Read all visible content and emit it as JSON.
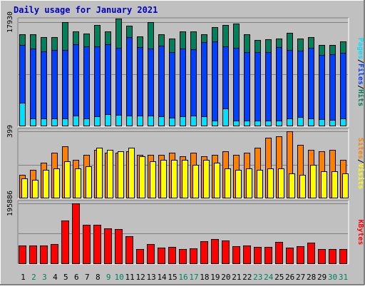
{
  "chart_data": {
    "type": "bar",
    "title": "Daily usage for January 2021",
    "categories": [
      "1",
      "2",
      "3",
      "4",
      "5",
      "6",
      "7",
      "8",
      "9",
      "10",
      "11",
      "12",
      "13",
      "14",
      "15",
      "16",
      "17",
      "18",
      "19",
      "20",
      "21",
      "22",
      "23",
      "24",
      "25",
      "26",
      "27",
      "28",
      "29",
      "30",
      "31"
    ],
    "weekend_days": [
      "2",
      "3",
      "9",
      "10",
      "16",
      "17",
      "23",
      "24",
      "30",
      "31"
    ],
    "colors": {
      "hits": "#00805c",
      "files": "#0040ff",
      "pages": "#00e0ff",
      "visits": "#ffff00",
      "sites": "#ff8000",
      "kbytes": "#ff0000",
      "title": "#0000c0",
      "weekday_label": "#000000",
      "weekend_label": "#00805c"
    },
    "panels": [
      {
        "id": "hits-files-pages",
        "max_label": "17930",
        "ylim": [
          0,
          17930
        ],
        "series": [
          {
            "name": "Hits",
            "key": "hits",
            "values": [
              15800,
              15900,
              15400,
              15400,
              17900,
              16300,
              16000,
              17400,
              16400,
              18500,
              17300,
              15500,
              17900,
              15800,
              15100,
              16300,
              16300,
              15900,
              17100,
              17500,
              17700,
              15900,
              14900,
              15000,
              15100,
              16100,
              15100,
              15400,
              14000,
              14000,
              14600
            ]
          },
          {
            "name": "Files",
            "key": "files",
            "values": [
              14000,
              13400,
              12900,
              13200,
              13200,
              14100,
              13800,
              13800,
              14100,
              13500,
              15400,
              13700,
              13400,
              13900,
              12800,
              13400,
              13300,
              14500,
              14600,
              13800,
              13500,
              12800,
              12800,
              12800,
              13700,
              13100,
              13000,
              13500,
              12300,
              12400,
              12700
            ]
          },
          {
            "name": "Pages",
            "key": "pages",
            "values": [
              4000,
              1300,
              1300,
              1300,
              1400,
              1900,
              1400,
              1700,
              2100,
              2000,
              1900,
              1800,
              1800,
              1700,
              1500,
              1700,
              1800,
              1700,
              1000,
              3100,
              1000,
              1000,
              1000,
              1000,
              1000,
              1400,
              1600,
              1300,
              1200,
              1100,
              1300
            ]
          }
        ],
        "legend": [
          "Pages",
          "/",
          "Files",
          "/",
          "Hits"
        ]
      },
      {
        "id": "visits-sites",
        "max_label": "399",
        "ylim": [
          0,
          399
        ],
        "series": [
          {
            "name": "Sites",
            "key": "sites",
            "values": [
              140,
              170,
              210,
              270,
              310,
              230,
              260,
              290,
              270,
              270,
              280,
              260,
              260,
              260,
              270,
              250,
              270,
              250,
              260,
              280,
              260,
              270,
              300,
              360,
              370,
              400,
              320,
              290,
              280,
              290,
              230
            ]
          },
          {
            "name": "Visits",
            "key": "visits",
            "values": [
              120,
              110,
              170,
              180,
              220,
              180,
              190,
              300,
              290,
              280,
              300,
              250,
              220,
              230,
              230,
              230,
              200,
              230,
              210,
              180,
              170,
              180,
              170,
              180,
              180,
              150,
              140,
              200,
              160,
              160,
              150
            ]
          }
        ],
        "legend": [
          "Sites",
          "/",
          "Visits"
        ]
      },
      {
        "id": "kbytes",
        "max_label": "195886",
        "ylim": [
          0,
          195886
        ],
        "series": [
          {
            "name": "KBytes",
            "key": "kbytes",
            "values": [
              59000,
              59000,
              60000,
              65000,
              139000,
              195886,
              125000,
              127000,
              114000,
              113000,
              90000,
              47000,
              65000,
              53000,
              55000,
              49000,
              50000,
              74000,
              80000,
              76000,
              58000,
              59000,
              55000,
              56000,
              71000,
              53000,
              57000,
              69000,
              47000,
              48000,
              48000
            ]
          }
        ],
        "legend": [
          "KBytes"
        ]
      }
    ]
  }
}
